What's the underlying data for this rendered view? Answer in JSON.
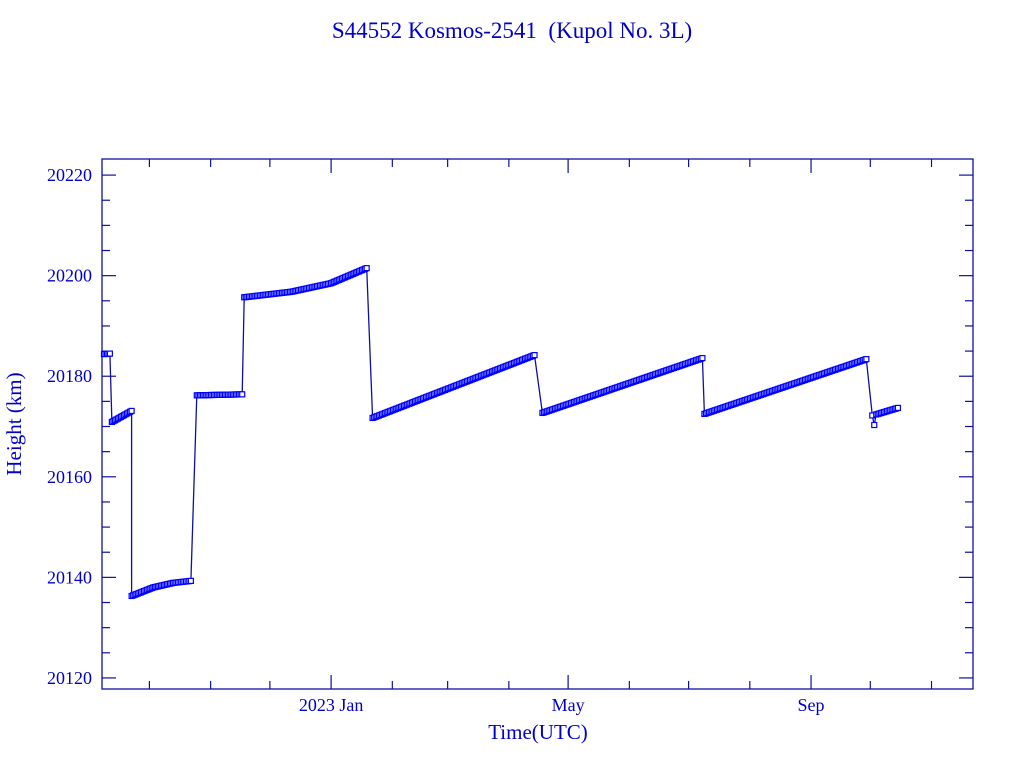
{
  "chart_data": {
    "type": "line",
    "title": "S44552 Kosmos-2541  (Kupol No. 3L)",
    "xlabel": "Time(UTC)",
    "ylabel": "Height (km)",
    "x_units": "days since 2023-01-01",
    "xlim": [
      -116,
      325
    ],
    "ylim": [
      20117.8,
      20223.2
    ],
    "y_ticks": [
      20120,
      20140,
      20160,
      20180,
      20200,
      20220
    ],
    "y_tick_labels": [
      "20120",
      "20140",
      "20160",
      "20180",
      "20200",
      "20220"
    ],
    "y_minor_step": 5,
    "x_month_ticks": [
      -92,
      -61,
      -31,
      0,
      31,
      59,
      90,
      120,
      151,
      181,
      212,
      243,
      273,
      304
    ],
    "x_tick_labels": [
      {
        "x": 0,
        "label": "2023 Jan"
      },
      {
        "x": 120,
        "label": "May"
      },
      {
        "x": 243,
        "label": "Sep"
      }
    ],
    "grid": false,
    "colors": {
      "axis": "#1010a0",
      "series": "#0000ff",
      "text": "#0000c8"
    },
    "segments": [
      {
        "points": [
          [
            -115,
            20184.4
          ],
          [
            -112,
            20184.5
          ]
        ]
      },
      {
        "points": [
          [
            -111,
            20170.9
          ],
          [
            -101,
            20173.1
          ]
        ]
      },
      {
        "points": [
          [
            -101,
            20136.3
          ],
          [
            -90,
            20138.0
          ],
          [
            -80,
            20138.9
          ],
          [
            -71,
            20139.3
          ]
        ]
      },
      {
        "points": [
          [
            -68,
            20176.2
          ],
          [
            -45,
            20176.4
          ]
        ]
      },
      {
        "points": [
          [
            -44,
            20195.7
          ],
          [
            -20,
            20196.8
          ],
          [
            0,
            20198.5
          ],
          [
            18,
            20201.5
          ]
        ]
      },
      {
        "points": [
          [
            21,
            20171.7
          ],
          [
            103,
            20184.2
          ]
        ]
      },
      {
        "points": [
          [
            107,
            20172.7
          ],
          [
            188,
            20183.6
          ]
        ]
      },
      {
        "points": [
          [
            189,
            20172.5
          ],
          [
            271,
            20183.4
          ]
        ]
      },
      {
        "points": [
          [
            274,
            20172.2
          ],
          [
            275,
            20170.3
          ],
          [
            276,
            20172.4
          ],
          [
            287,
            20173.7
          ]
        ]
      }
    ]
  }
}
